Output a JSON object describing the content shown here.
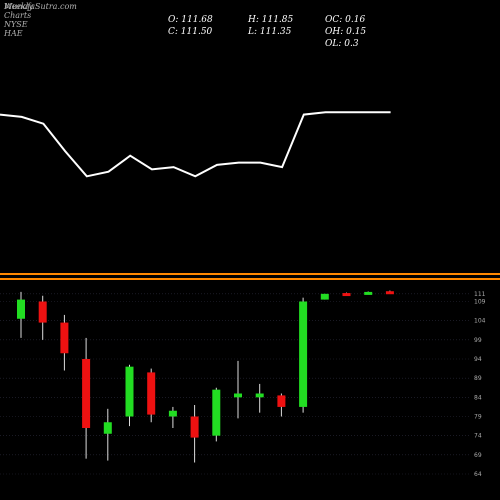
{
  "header": {
    "watermark": "MunafaSutra.com",
    "title": "Weekly Charts NYSE HAE"
  },
  "ohlc": {
    "open": "O: 111.68",
    "high": "H: 111.85",
    "oc": "OC: 0.16",
    "close": "C: 111.50",
    "low": "L: 111.35",
    "oh": "OH: 0.15",
    "ol": "OL: 0.3"
  },
  "colors": {
    "up": "#22dd22",
    "down": "#ee1111",
    "line": "#ffffff",
    "divider": "#ff8800",
    "grid": "#2a2a3a",
    "text": "#aaaaaa"
  },
  "chart_data": [
    {
      "type": "line",
      "title": "",
      "description_note": "upper indicator panel, no axes printed",
      "values": [
        128,
        127,
        124,
        112,
        101,
        103,
        110,
        104,
        105,
        101,
        106,
        107,
        107,
        105,
        128,
        129,
        129,
        129,
        129
      ],
      "ylim": [
        95,
        130
      ]
    },
    {
      "type": "candlestick",
      "title": "Weekly Charts NYSE HAE",
      "y_ticks": [
        111,
        109,
        104,
        99,
        94,
        89,
        84,
        79,
        74,
        69,
        64
      ],
      "ylim": [
        64,
        112
      ],
      "candles": [
        {
          "open": 104.5,
          "high": 111.5,
          "low": 99.5,
          "close": 109.5
        },
        {
          "open": 109.0,
          "high": 110.5,
          "low": 99.0,
          "close": 103.5
        },
        {
          "open": 103.5,
          "high": 105.5,
          "low": 91.0,
          "close": 95.5
        },
        {
          "open": 94.0,
          "high": 99.5,
          "low": 68.0,
          "close": 76.0
        },
        {
          "open": 74.5,
          "high": 81.0,
          "low": 67.5,
          "close": 77.5
        },
        {
          "open": 79.0,
          "high": 92.5,
          "low": 76.5,
          "close": 92.0
        },
        {
          "open": 90.5,
          "high": 91.5,
          "low": 77.5,
          "close": 79.5
        },
        {
          "open": 79.0,
          "high": 81.5,
          "low": 76.0,
          "close": 80.5
        },
        {
          "open": 79.0,
          "high": 82.0,
          "low": 67.0,
          "close": 73.5
        },
        {
          "open": 74.0,
          "high": 86.5,
          "low": 72.5,
          "close": 86.0
        },
        {
          "open": 84.0,
          "high": 93.5,
          "low": 78.5,
          "close": 85.0
        },
        {
          "open": 84.0,
          "high": 87.5,
          "low": 80.0,
          "close": 85.0
        },
        {
          "open": 84.5,
          "high": 85.0,
          "low": 79.0,
          "close": 81.5
        },
        {
          "open": 81.5,
          "high": 110.0,
          "low": 80.0,
          "close": 109.0
        },
        {
          "open": 109.5,
          "high": 111.0,
          "low": 109.5,
          "close": 111.0
        },
        {
          "open": 111.2,
          "high": 111.3,
          "low": 111.0,
          "close": 111.0
        },
        {
          "open": 111.2,
          "high": 111.6,
          "low": 111.1,
          "close": 111.5
        },
        {
          "open": 111.68,
          "high": 111.85,
          "low": 111.35,
          "close": 111.5
        }
      ]
    }
  ]
}
